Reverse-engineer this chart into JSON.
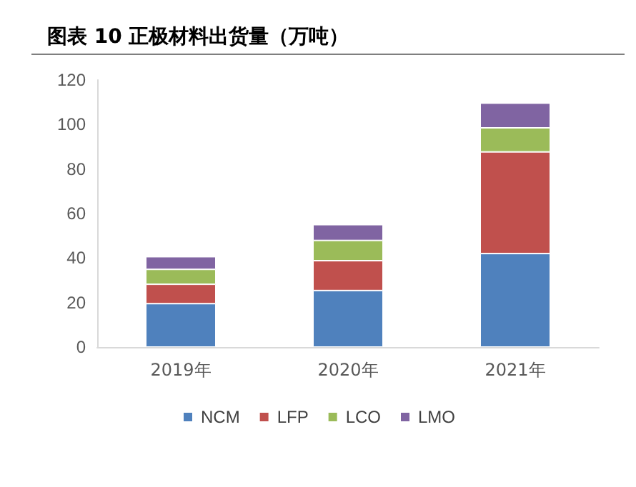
{
  "chart_data": {
    "type": "bar",
    "stacked": true,
    "title": "图表 10 正极材料出货量（万吨）",
    "categories": [
      "2019年",
      "2020年",
      "2021年"
    ],
    "series": [
      {
        "name": "NCM",
        "color": "#4f81bd",
        "values": [
          19.5,
          25.4,
          42.0
        ]
      },
      {
        "name": "LFP",
        "color": "#c0504d",
        "values": [
          8.7,
          13.4,
          45.7
        ]
      },
      {
        "name": "LCO",
        "color": "#9bbb59",
        "values": [
          6.7,
          9.1,
          10.8
        ]
      },
      {
        "name": "LMO",
        "color": "#8064a2",
        "values": [
          5.7,
          7.1,
          11.1
        ]
      }
    ],
    "ylim": [
      0,
      120
    ],
    "yticks": [
      0,
      20,
      40,
      60,
      80,
      100,
      120
    ],
    "grid": false,
    "legend": "bottom"
  }
}
